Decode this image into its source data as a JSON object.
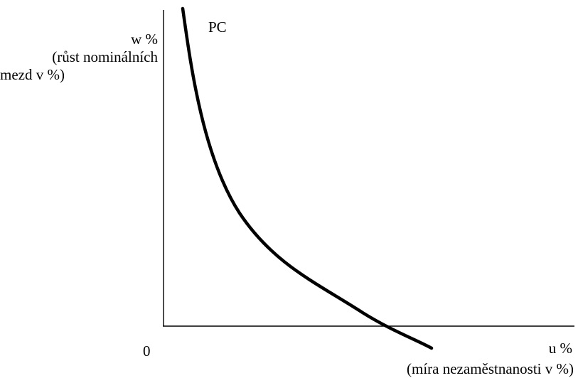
{
  "colors": {
    "line": "#000000",
    "background": "#ffffff"
  },
  "labels": {
    "curve": "PC",
    "y_symbol": "w %",
    "y_desc_line1": "(růst nominálních",
    "y_desc_line2": "mezd v %)",
    "origin": "0",
    "x_symbol": "u %",
    "x_desc": "(míra nezaměstnanosti v %)"
  }
}
